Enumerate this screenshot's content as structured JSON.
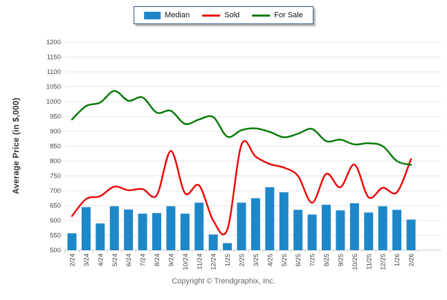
{
  "legend": {
    "items": [
      {
        "label": "Median",
        "type": "bar",
        "color": "#1E87C8"
      },
      {
        "label": "Sold",
        "type": "line",
        "color": "#EC0909"
      },
      {
        "label": "For Sale",
        "type": "line",
        "color": "#087A08"
      }
    ]
  },
  "footer": {
    "copyright": "Copyright © Trendgraphix, Inc."
  },
  "chart_data": {
    "type": "bar",
    "title": "",
    "xlabel": "",
    "ylabel": "Average Price (in $,000)",
    "ylim": [
      500,
      1200
    ],
    "ytick_step": 50,
    "yticks": [
      1200,
      1150,
      1100,
      1050,
      1000,
      950,
      900,
      850,
      800,
      750,
      700,
      650,
      600,
      550,
      500
    ],
    "grid": "horizontal",
    "legend_position": "top-center",
    "categories": [
      "2/24",
      "3/24",
      "4/24",
      "5/24",
      "6/24",
      "7/24",
      "8/24",
      "9/24",
      "10/24",
      "11/24",
      "12/24",
      "1/25",
      "2/25",
      "3/25",
      "4/25",
      "5/25",
      "6/25",
      "7/25",
      "8/25",
      "9/25",
      "10/25",
      "11/25",
      "12/25",
      "1/26",
      "2/26"
    ],
    "series": [
      {
        "name": "Median",
        "type": "bar",
        "color": "#1E87C8",
        "values": [
          557,
          645,
          590,
          648,
          637,
          623,
          625,
          648,
          623,
          660,
          553,
          524,
          660,
          675,
          712,
          695,
          636,
          620,
          653,
          634,
          658,
          627,
          648,
          636,
          603
        ]
      },
      {
        "name": "Sold",
        "type": "line",
        "color": "#EC0909",
        "values": [
          615,
          672,
          682,
          714,
          702,
          706,
          685,
          834,
          692,
          718,
          600,
          570,
          855,
          815,
          790,
          778,
          750,
          660,
          757,
          712,
          788,
          678,
          710,
          695,
          807
        ]
      },
      {
        "name": "For Sale",
        "type": "line",
        "color": "#087A08",
        "values": [
          940,
          985,
          997,
          1036,
          1003,
          1014,
          963,
          969,
          925,
          940,
          948,
          882,
          904,
          910,
          898,
          880,
          892,
          908,
          867,
          872,
          856,
          860,
          850,
          800,
          787
        ]
      }
    ],
    "colors": {
      "grid": "#E7E7E7",
      "axis": "#C8C8C8",
      "tick_text": "#444444"
    }
  }
}
